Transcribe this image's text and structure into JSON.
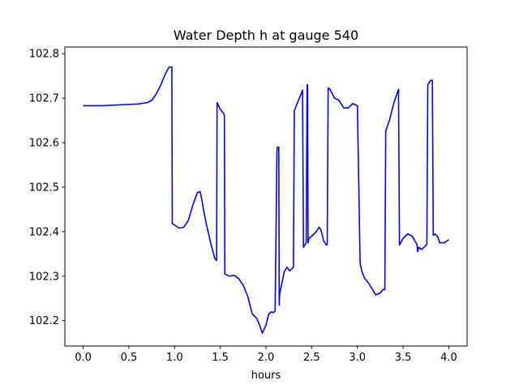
{
  "chart_data": {
    "type": "line",
    "title": "Water Depth h at gauge 540",
    "xlabel": "hours",
    "ylabel": "",
    "xlim": [
      -0.2,
      4.2
    ],
    "ylim": [
      102.143,
      102.815
    ],
    "xticks": [
      0.0,
      0.5,
      1.0,
      1.5,
      2.0,
      2.5,
      3.0,
      3.5,
      4.0
    ],
    "xtick_labels": [
      "0.0",
      "0.5",
      "1.0",
      "1.5",
      "2.0",
      "2.5",
      "3.0",
      "3.5",
      "4.0"
    ],
    "yticks": [
      102.2,
      102.3,
      102.4,
      102.5,
      102.6,
      102.7,
      102.8
    ],
    "ytick_labels": [
      "102.2",
      "102.3",
      "102.4",
      "102.5",
      "102.6",
      "102.7",
      "102.8"
    ],
    "grid": false,
    "series": [
      {
        "color": "#0000ff",
        "x": [
          0.0,
          0.2,
          0.4,
          0.6,
          0.7,
          0.75,
          0.8,
          0.85,
          0.9,
          0.94,
          0.97,
          0.975,
          1.0,
          1.05,
          1.1,
          1.15,
          1.2,
          1.25,
          1.28,
          1.3,
          1.32,
          1.35,
          1.4,
          1.44,
          1.46,
          1.465,
          1.5,
          1.54,
          1.545,
          1.55,
          1.6,
          1.65,
          1.7,
          1.75,
          1.8,
          1.85,
          1.9,
          1.93,
          1.96,
          2.0,
          2.03,
          2.06,
          2.08,
          2.1,
          2.12,
          2.125,
          2.14,
          2.145,
          2.15,
          2.2,
          2.23,
          2.26,
          2.3,
          2.31,
          2.4,
          2.41,
          2.44,
          2.45,
          2.455,
          2.46,
          2.465,
          2.47,
          2.5,
          2.55,
          2.58,
          2.6,
          2.63,
          2.66,
          2.67,
          2.68,
          2.7,
          2.75,
          2.8,
          2.85,
          2.9,
          2.95,
          3.0,
          3.03,
          3.04,
          3.05,
          3.08,
          3.1,
          3.13,
          3.17,
          3.2,
          3.25,
          3.28,
          3.3,
          3.31,
          3.35,
          3.4,
          3.45,
          3.46,
          3.5,
          3.55,
          3.6,
          3.62,
          3.65,
          3.66,
          3.67,
          3.7,
          3.73,
          3.76,
          3.77,
          3.8,
          3.82,
          3.83,
          3.85,
          3.88,
          3.9,
          3.95,
          4.0
        ],
        "y": [
          102.683,
          102.683,
          102.685,
          102.687,
          102.69,
          102.695,
          102.71,
          102.73,
          102.755,
          102.77,
          102.77,
          102.418,
          102.415,
          102.408,
          102.41,
          102.425,
          102.46,
          102.488,
          102.49,
          102.47,
          102.445,
          102.415,
          102.37,
          102.34,
          102.335,
          102.69,
          102.675,
          102.665,
          102.66,
          102.305,
          102.3,
          102.302,
          102.295,
          102.28,
          102.255,
          102.215,
          102.205,
          102.19,
          102.172,
          102.19,
          102.215,
          102.22,
          102.218,
          102.222,
          102.58,
          102.59,
          102.59,
          102.235,
          102.26,
          102.31,
          102.32,
          102.312,
          102.32,
          102.672,
          102.718,
          102.365,
          102.375,
          102.73,
          102.73,
          102.375,
          102.38,
          102.385,
          102.39,
          102.4,
          102.41,
          102.405,
          102.38,
          102.37,
          102.372,
          102.723,
          102.72,
          102.7,
          102.695,
          102.678,
          102.678,
          102.688,
          102.683,
          102.328,
          102.32,
          102.31,
          102.295,
          102.29,
          102.282,
          102.268,
          102.258,
          102.262,
          102.27,
          102.27,
          102.626,
          102.65,
          102.69,
          102.72,
          102.37,
          102.385,
          102.395,
          102.39,
          102.382,
          102.372,
          102.355,
          102.365,
          102.36,
          102.365,
          102.372,
          102.73,
          102.74,
          102.74,
          102.392,
          102.395,
          102.388,
          102.375,
          102.375,
          102.382
        ]
      }
    ]
  }
}
